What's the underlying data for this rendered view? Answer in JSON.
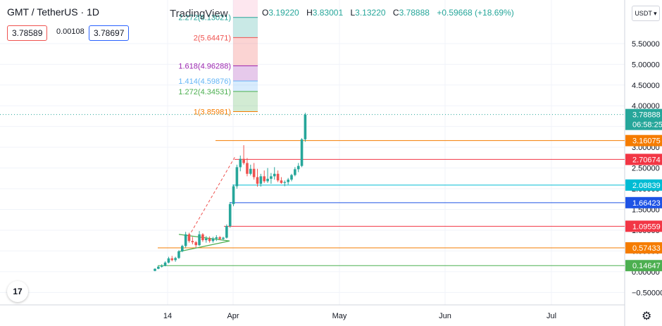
{
  "header": {
    "symbol": "GMT / TetherUS · 1D",
    "brand": "TradingView",
    "ohlc": {
      "o_label": "O",
      "o": "3.19220",
      "h_label": "H",
      "h": "3.83001",
      "l_label": "L",
      "l": "3.13220",
      "c_label": "C",
      "c": "3.78888",
      "change": "+0.59668 (+18.69%)"
    },
    "bid": "3.78589",
    "spread": "0.00108",
    "ask": "3.78697",
    "currency": "USDT ▾"
  },
  "colors": {
    "up": "#26a69a",
    "down": "#ef5350",
    "orange": "#f57c00",
    "red": "#f23645",
    "cyan": "#00bcd4",
    "blue": "#1e53e5",
    "green": "#4caf50",
    "purple": "#9c27b0",
    "lightblue": "#64b5f6"
  },
  "chart_data": {
    "type": "candlestick",
    "x_ticks": [
      "14",
      "Apr",
      "May",
      "Jun",
      "Jul"
    ],
    "y_ticks": [
      5.5,
      5.0,
      4.5,
      4.0,
      3.5,
      3.0,
      2.5,
      2.0,
      1.5,
      1.0,
      0.5,
      0.0,
      -0.5
    ],
    "y_tick_labels": [
      "5.50000",
      "5.00000",
      "4.50000",
      "4.00000",
      "3.50000",
      "3.00000",
      "2.50000",
      "2.00000",
      "1.50000",
      "1.00000",
      "0.50000",
      "0.00000",
      "−0.50000"
    ],
    "ylim": [
      -0.8,
      6.55
    ],
    "candles": [
      [
        0.02,
        0.08,
        0.01,
        0.07
      ],
      [
        0.07,
        0.14,
        0.06,
        0.12
      ],
      [
        0.12,
        0.18,
        0.1,
        0.14
      ],
      [
        0.14,
        0.25,
        0.13,
        0.22
      ],
      [
        0.22,
        0.36,
        0.2,
        0.32
      ],
      [
        0.32,
        0.38,
        0.25,
        0.28
      ],
      [
        0.28,
        0.36,
        0.24,
        0.33
      ],
      [
        0.33,
        0.52,
        0.31,
        0.49
      ],
      [
        0.49,
        0.65,
        0.47,
        0.62
      ],
      [
        0.62,
        0.96,
        0.58,
        0.9
      ],
      [
        0.9,
        0.94,
        0.7,
        0.74
      ],
      [
        0.74,
        0.84,
        0.66,
        0.71
      ],
      [
        0.71,
        0.74,
        0.58,
        0.64
      ],
      [
        0.64,
        0.98,
        0.62,
        0.9
      ],
      [
        0.9,
        0.93,
        0.72,
        0.76
      ],
      [
        0.76,
        0.86,
        0.7,
        0.8
      ],
      [
        0.8,
        0.85,
        0.7,
        0.74
      ],
      [
        0.74,
        0.84,
        0.7,
        0.8
      ],
      [
        0.8,
        0.88,
        0.74,
        0.83
      ],
      [
        0.83,
        0.86,
        0.76,
        0.79
      ],
      [
        0.79,
        0.84,
        0.76,
        0.82
      ],
      [
        0.82,
        1.14,
        0.8,
        1.1
      ],
      [
        1.1,
        1.68,
        1.06,
        1.63
      ],
      [
        1.63,
        2.1,
        1.58,
        2.06
      ],
      [
        2.06,
        2.58,
        2.0,
        2.52
      ],
      [
        2.52,
        2.8,
        2.42,
        2.72
      ],
      [
        2.72,
        3.05,
        2.58,
        2.62
      ],
      [
        2.62,
        2.74,
        2.3,
        2.36
      ],
      [
        2.36,
        2.58,
        2.32,
        2.48
      ],
      [
        2.48,
        2.62,
        2.22,
        2.28
      ],
      [
        2.28,
        2.48,
        2.05,
        2.12
      ],
      [
        2.12,
        2.36,
        2.05,
        2.3
      ],
      [
        2.3,
        2.44,
        2.14,
        2.18
      ],
      [
        2.18,
        2.5,
        2.14,
        2.24
      ],
      [
        2.24,
        2.38,
        2.12,
        2.3
      ],
      [
        2.3,
        2.52,
        2.22,
        2.36
      ],
      [
        2.36,
        2.44,
        2.16,
        2.2
      ],
      [
        2.2,
        2.28,
        2.12,
        2.14
      ],
      [
        2.14,
        2.2,
        2.06,
        2.16
      ],
      [
        2.16,
        2.26,
        2.1,
        2.22
      ],
      [
        2.22,
        2.36,
        2.18,
        2.33
      ],
      [
        2.33,
        2.52,
        2.3,
        2.47
      ],
      [
        2.47,
        2.62,
        2.4,
        2.55
      ],
      [
        2.55,
        3.22,
        2.52,
        3.19
      ],
      [
        3.1922,
        3.83001,
        3.1322,
        3.78888
      ]
    ],
    "horizontal_levels": [
      {
        "value": 3.16075,
        "label": "3.16075",
        "color": "#f57c00"
      },
      {
        "value": 2.70674,
        "label": "2.70674",
        "color": "#f23645"
      },
      {
        "value": 2.08839,
        "label": "2.08839",
        "color": "#00bcd4"
      },
      {
        "value": 1.66423,
        "label": "1.66423",
        "color": "#1e53e5"
      },
      {
        "value": 1.09559,
        "label": "1.09559",
        "color": "#f23645"
      },
      {
        "value": 0.57433,
        "label": "0.57433",
        "color": "#f57c00"
      },
      {
        "value": 0.14647,
        "label": "0.14647",
        "color": "#4caf50"
      }
    ],
    "last_price": {
      "value": 3.78888,
      "label": "3.78888",
      "countdown": "06:58:25"
    },
    "fibonacci": [
      {
        "label": "2.272(6.13021)",
        "value": 6.13021,
        "color": "#26a69a"
      },
      {
        "label": "2(5.64471)",
        "value": 5.64471,
        "color": "#ef5350"
      },
      {
        "label": "1.618(4.96288)",
        "value": 4.96288,
        "color": "#9c27b0"
      },
      {
        "label": "1.414(4.59876)",
        "value": 4.59876,
        "color": "#64b5f6"
      },
      {
        "label": "1.272(4.34531)",
        "value": 4.34531,
        "color": "#4caf50"
      },
      {
        "label": "1(3.85981)",
        "value": 3.85981,
        "color": "#f57c00"
      }
    ]
  }
}
